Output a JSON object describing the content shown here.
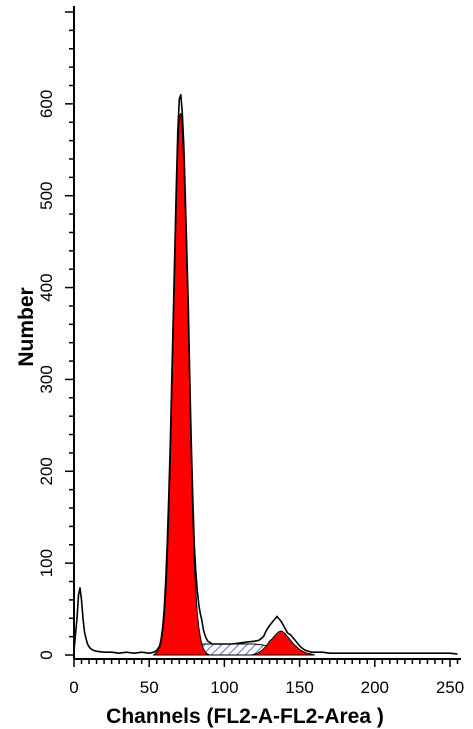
{
  "chart_data": {
    "type": "area",
    "title": "",
    "xlabel": "Channels (FL2-A-FL2-Area )",
    "ylabel": "Number",
    "xlim": [
      0,
      256
    ],
    "ylim": [
      0,
      700
    ],
    "xticks": [
      0,
      50,
      100,
      150,
      200,
      250
    ],
    "yticks": [
      0,
      100,
      200,
      300,
      400,
      500,
      600
    ],
    "grid": false,
    "legend": "none",
    "colors": {
      "g1_g2_fill": "#ff0000",
      "s_phase_hatch": "#5b6fd6",
      "outline": "#000000"
    },
    "series": [
      {
        "x": [
          0,
          2,
          3,
          4,
          5,
          6,
          7,
          8,
          9,
          10,
          11,
          13,
          15,
          20,
          25,
          30,
          35,
          40,
          45,
          50,
          53,
          55,
          57,
          58,
          59,
          60,
          61,
          62,
          63,
          64,
          65,
          66,
          67,
          68,
          69,
          70,
          71,
          72,
          73,
          74,
          75,
          76,
          77,
          78,
          79,
          80,
          81,
          82,
          83,
          84,
          85,
          86,
          87,
          88,
          89,
          90,
          92,
          95,
          100,
          105,
          110,
          115,
          120,
          123,
          126,
          128,
          130,
          132,
          134,
          135,
          136,
          138,
          140,
          142,
          144,
          146,
          148,
          150,
          152,
          154,
          156,
          158,
          160,
          165,
          170,
          180,
          190,
          200,
          210,
          220,
          230,
          240,
          250,
          255
        ],
        "values": [
          5,
          40,
          65,
          73,
          60,
          40,
          25,
          18,
          12,
          9,
          7,
          5,
          4,
          3,
          3,
          2,
          3,
          2,
          3,
          2,
          3,
          5,
          10,
          18,
          30,
          50,
          80,
          120,
          170,
          230,
          300,
          370,
          440,
          510,
          570,
          605,
          610,
          590,
          555,
          500,
          440,
          380,
          300,
          230,
          170,
          120,
          90,
          70,
          55,
          45,
          38,
          28,
          22,
          18,
          15,
          14,
          12,
          12,
          12,
          12,
          13,
          14,
          15,
          16,
          20,
          27,
          32,
          36,
          40,
          42,
          40,
          36,
          30,
          24,
          22,
          18,
          14,
          10,
          7,
          5,
          4,
          3,
          3,
          3,
          2,
          2,
          2,
          2,
          2,
          2,
          2,
          2,
          2,
          1
        ]
      },
      {
        "x": [
          53,
          55,
          57,
          58,
          59,
          60,
          61,
          62,
          63,
          64,
          65,
          66,
          67,
          68,
          69,
          70,
          71,
          72,
          73,
          74,
          75,
          76,
          77,
          78,
          79,
          80,
          81,
          82,
          83,
          84,
          85,
          86,
          87,
          88,
          90
        ],
        "values": [
          0,
          3,
          8,
          15,
          25,
          40,
          65,
          100,
          150,
          210,
          280,
          350,
          420,
          490,
          550,
          585,
          590,
          570,
          535,
          480,
          420,
          360,
          280,
          210,
          150,
          100,
          70,
          45,
          30,
          20,
          12,
          7,
          4,
          2,
          0
        ]
      },
      {
        "x": [
          118,
          122,
          125,
          128,
          130,
          132,
          134,
          136,
          138,
          140,
          142,
          144,
          146,
          148,
          150,
          152,
          155,
          158,
          160
        ],
        "values": [
          0,
          2,
          5,
          10,
          15,
          18,
          22,
          25,
          26,
          24,
          20,
          16,
          12,
          9,
          6,
          4,
          2,
          1,
          0
        ]
      },
      {
        "x": [
          60,
          63,
          65,
          68,
          70,
          75,
          80,
          85,
          90,
          95,
          100,
          105,
          110,
          115,
          120,
          125,
          128,
          130,
          135,
          140,
          145,
          150,
          155,
          160
        ],
        "values": [
          0,
          2,
          5,
          8,
          10,
          12,
          12,
          12,
          12,
          12,
          12,
          12,
          12,
          12,
          12,
          11,
          10,
          9,
          7,
          5,
          3,
          2,
          1,
          0
        ]
      }
    ]
  }
}
